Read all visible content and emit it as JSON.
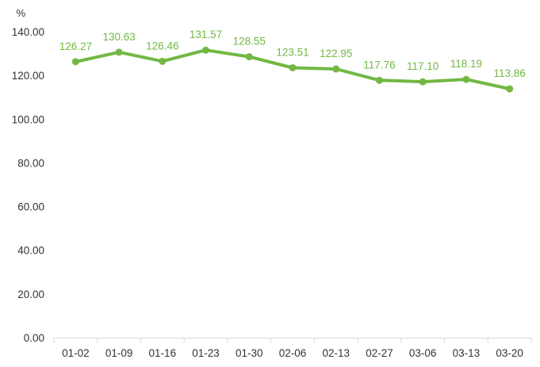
{
  "chart_data": {
    "type": "line",
    "title": "",
    "xlabel": "",
    "ylabel": "%",
    "ylim": [
      0,
      140
    ],
    "yticks": [
      "0.00",
      "20.00",
      "40.00",
      "60.00",
      "80.00",
      "100.00",
      "120.00",
      "140.00"
    ],
    "categories": [
      "01-02",
      "01-09",
      "01-16",
      "01-23",
      "01-30",
      "02-06",
      "02-13",
      "02-27",
      "03-06",
      "03-13",
      "03-20"
    ],
    "series": [
      {
        "values": [
          126.27,
          130.63,
          126.46,
          131.57,
          128.55,
          123.51,
          122.95,
          117.76,
          117.1,
          118.19,
          113.86
        ],
        "labels": [
          "126.27",
          "130.63",
          "126.46",
          "131.57",
          "128.55",
          "123.51",
          "122.95",
          "117.76",
          "117.10",
          "118.19",
          "113.86"
        ],
        "color": "#72b843"
      }
    ],
    "grid": false,
    "legend": "none"
  }
}
